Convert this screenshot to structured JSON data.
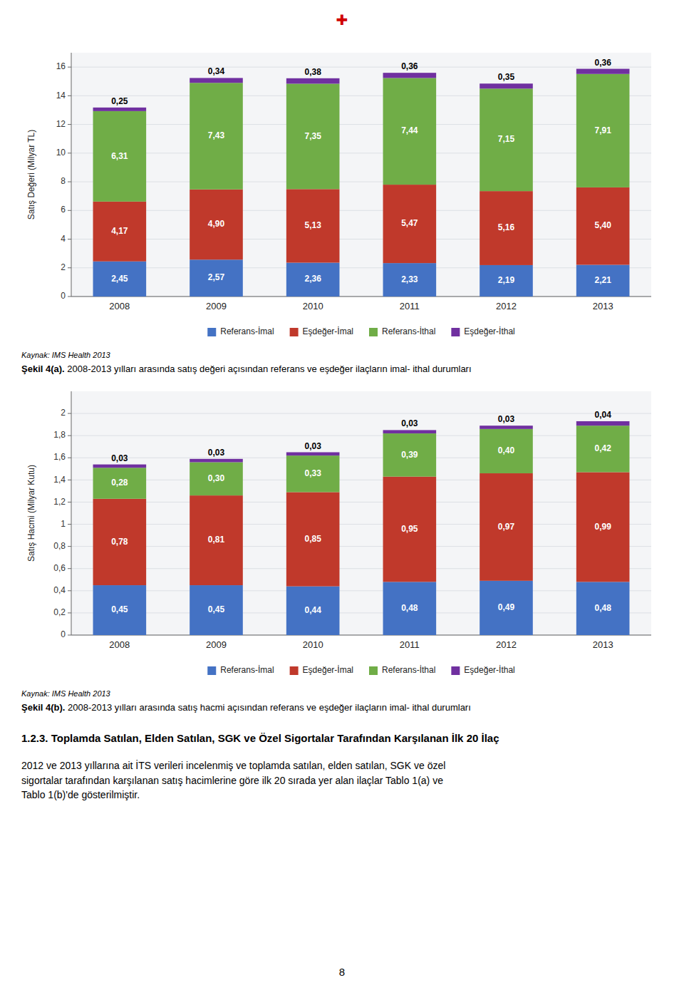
{
  "chart_data": [
    {
      "type": "bar",
      "stacked": true,
      "data_labels": true,
      "grid": true,
      "legend": "bottom",
      "ylabel": "Satış Değeri (Milyar TL)",
      "categories": [
        "2008",
        "2009",
        "2010",
        "2011",
        "2012",
        "2013"
      ],
      "ylim": [
        0,
        17
      ],
      "yticks": [
        0,
        2,
        4,
        6,
        8,
        10,
        12,
        14,
        16
      ],
      "series": [
        {
          "name": "Referans-İmal",
          "color": "#4472C4",
          "values": [
            2.45,
            2.57,
            2.36,
            2.33,
            2.19,
            2.21
          ],
          "value_labels": [
            "2,45",
            "2,57",
            "2,36",
            "2,33",
            "2,19",
            "2,21"
          ]
        },
        {
          "name": "Eşdeğer-İmal",
          "color": "#C0392B",
          "values": [
            4.17,
            4.9,
            5.13,
            5.47,
            5.16,
            5.4
          ],
          "value_labels": [
            "4,17",
            "4,90",
            "5,13",
            "5,47",
            "5,16",
            "5,40"
          ]
        },
        {
          "name": "Referans-İthal",
          "color": "#70AD47",
          "values": [
            6.31,
            7.43,
            7.35,
            7.44,
            7.15,
            7.91
          ],
          "value_labels": [
            "6,31",
            "7,43",
            "7,35",
            "7,44",
            "7,15",
            "7,91"
          ]
        },
        {
          "name": "Eşdeğer-İthal",
          "color": "#7030A0",
          "values": [
            0.25,
            0.34,
            0.38,
            0.36,
            0.35,
            0.36
          ],
          "value_labels": [
            "0,25",
            "0,34",
            "0,38",
            "0,36",
            "0,35",
            "0,36"
          ]
        }
      ],
      "source": "Kaynak: IMS Health 2013",
      "caption_label": "Şekil 4(a).",
      "caption": " 2008-2013 yılları arasında satış değeri açısından referans ve eşdeğer ilaçların imal- ithal durumları"
    },
    {
      "type": "bar",
      "stacked": true,
      "data_labels": true,
      "grid": true,
      "legend": "bottom",
      "ylabel": "Satış Hacmi (Milyar Kutu)",
      "categories": [
        "2008",
        "2009",
        "2010",
        "2011",
        "2012",
        "2013"
      ],
      "ylim": [
        0,
        2.2
      ],
      "yticks": [
        0,
        {
          "value": 0.2,
          "label": "0,2"
        },
        {
          "value": 0.4,
          "label": "0,4"
        },
        {
          "value": 0.6,
          "label": "0,6"
        },
        {
          "value": 0.8,
          "label": "0,8"
        },
        1,
        {
          "value": 1.2,
          "label": "1,2"
        },
        {
          "value": 1.4,
          "label": "1,4"
        },
        {
          "value": 1.6,
          "label": "1,6"
        },
        {
          "value": 1.8,
          "label": "1,8"
        },
        2
      ],
      "series": [
        {
          "name": "Referans-İmal",
          "color": "#4472C4",
          "values": [
            0.45,
            0.45,
            0.44,
            0.48,
            0.49,
            0.48
          ],
          "value_labels": [
            "0,45",
            "0,45",
            "0,44",
            "0,48",
            "0,49",
            "0,48"
          ]
        },
        {
          "name": "Eşdeğer-İmal",
          "color": "#C0392B",
          "values": [
            0.78,
            0.81,
            0.85,
            0.95,
            0.97,
            0.99
          ],
          "value_labels": [
            "0,78",
            "0,81",
            "0,85",
            "0,95",
            "0,97",
            "0,99"
          ]
        },
        {
          "name": "Referans-İthal",
          "color": "#70AD47",
          "values": [
            0.28,
            0.3,
            0.33,
            0.39,
            0.4,
            0.42
          ],
          "value_labels": [
            "0,28",
            "0,30",
            "0,33",
            "0,39",
            "0,40",
            "0,42"
          ]
        },
        {
          "name": "Eşdeğer-İthal",
          "color": "#7030A0",
          "values": [
            0.03,
            0.03,
            0.03,
            0.03,
            0.03,
            0.04
          ],
          "value_labels": [
            "0,03",
            "0,03",
            "0,03",
            "0,03",
            "0,03",
            "0,04"
          ]
        }
      ],
      "source": "Kaynak: IMS Health 2013",
      "caption_label": "Şekil 4(b).",
      "caption": " 2008-2013 yılları arasında satış hacmi açısından referans ve eşdeğer ilaçların imal- ithal durumları"
    }
  ],
  "page": {
    "logo": "✚",
    "section_title": "1.2.3. Toplamda Satılan, Elden Satılan, SGK ve Özel Sigortalar Tarafından Karşılanan İlk 20 İlaç",
    "body": [
      [
        "2012 ve 2013 yıllarına ait İTS verileri incelenmiş ve toplamda satılan, elden satılan, SGK ve özel"
      ],
      [
        "sigortalar tarafından karşılanan satış hacimlerine göre ilk 20 sırada yer alan ilaçlar ",
        "Tablo 1(a)",
        " ve"
      ],
      [
        "Tablo 1(b)",
        "'de gösterilmiştir."
      ]
    ],
    "page_number": "8"
  }
}
